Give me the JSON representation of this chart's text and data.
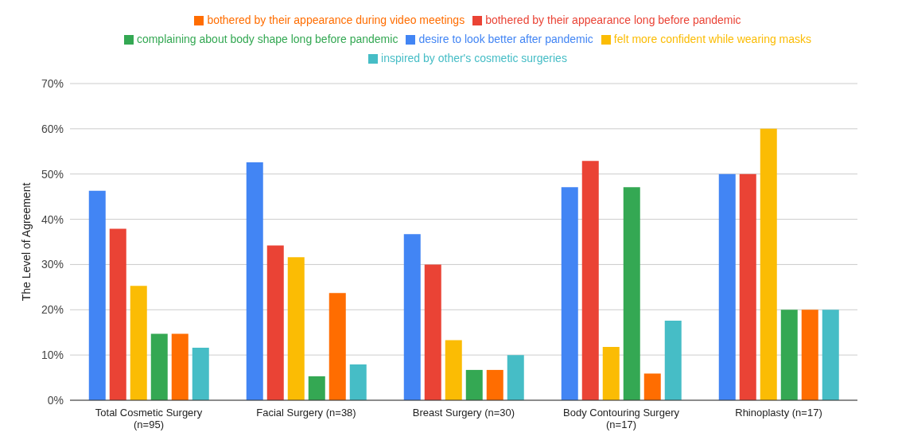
{
  "chart_data": {
    "type": "bar",
    "ylabel": "The Level of Agreement",
    "categories": [
      "Total Cosmetic Surgery (n=95)",
      "Facial Surgery (n=38)",
      "Breast Surgery (n=30)",
      "Body Contouring Surgery (n=17)",
      "Rhinoplasty (n=17)"
    ],
    "series": [
      {
        "name": "desire to look better after pandemic",
        "color": "#4285f4",
        "values": [
          46.3,
          52.6,
          36.7,
          47.1,
          50
        ]
      },
      {
        "name": "bothered by their appearance long before pandemic",
        "color": "#ea4335",
        "values": [
          37.9,
          34.2,
          30,
          52.9,
          50
        ]
      },
      {
        "name": "felt more confident while wearing masks",
        "color": "#fbbc04",
        "values": [
          25.3,
          31.6,
          13.3,
          11.8,
          60
        ]
      },
      {
        "name": "complaining about body shape long before pandemic",
        "color": "#34a853",
        "values": [
          14.7,
          5.3,
          6.7,
          47.1,
          20
        ]
      },
      {
        "name": "bothered by their appearance during video meetings",
        "color": "#ff6d01",
        "values": [
          14.7,
          23.7,
          6.7,
          5.9,
          20
        ]
      },
      {
        "name": "inspired by other's cosmetic surgeries",
        "color": "#46bdc6",
        "values": [
          11.6,
          7.9,
          10,
          17.6,
          20
        ]
      }
    ],
    "ylim": [
      0,
      70
    ],
    "yticks": [
      {
        "value": 0,
        "label": "0%"
      },
      {
        "value": 10,
        "label": "10%"
      },
      {
        "value": 20,
        "label": "20%"
      },
      {
        "value": 30,
        "label": "30%"
      },
      {
        "value": 40,
        "label": "40%"
      },
      {
        "value": 50,
        "label": "50%"
      },
      {
        "value": 60,
        "label": "60%"
      },
      {
        "value": 70,
        "label": "70%"
      }
    ],
    "grid": "y",
    "legend": "top"
  }
}
